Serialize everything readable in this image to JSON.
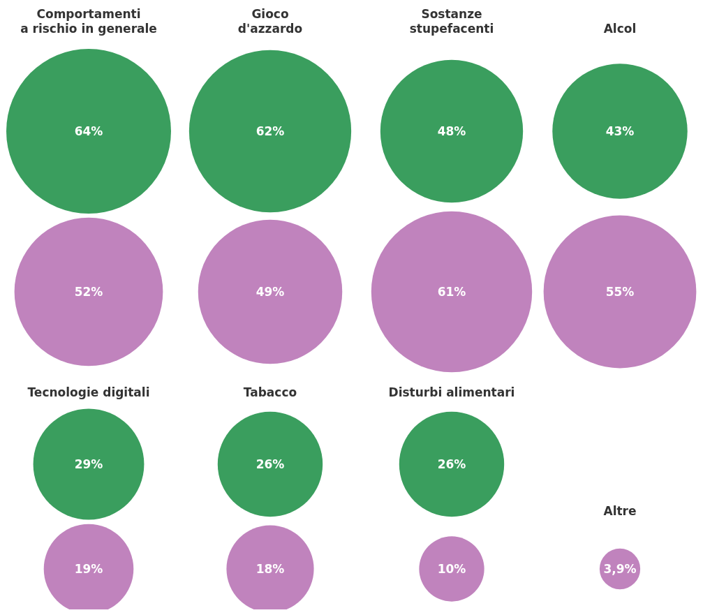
{
  "chart_data": [
    {
      "type": "other",
      "categories": [
        "Comportamenti\na rischio in generale",
        "Gioco\nd'azzardo",
        "Sostanze\nstupefacenti",
        "Alcol"
      ],
      "series": [
        {
          "color": "#3a9e5e",
          "values": [
            64,
            62,
            48,
            43
          ],
          "value_labels": [
            "64%",
            "62%",
            "48%",
            "43%"
          ]
        },
        {
          "color": "#c083bd",
          "values": [
            52,
            49,
            61,
            55
          ],
          "value_labels": [
            "52%",
            "49%",
            "61%",
            "55%"
          ]
        }
      ]
    },
    {
      "type": "other",
      "categories": [
        "Tecnologie digitali",
        "Tabacco",
        "Disturbi alimentari",
        "Altre"
      ],
      "series": [
        {
          "color": "#3a9e5e",
          "values": [
            29,
            26,
            26,
            null
          ],
          "value_labels": [
            "29%",
            "26%",
            "26%",
            null
          ]
        },
        {
          "color": "#c083bd",
          "values": [
            19,
            18,
            10,
            3.9
          ],
          "value_labels": [
            "19%",
            "18%",
            "10%",
            "3,9%"
          ]
        }
      ]
    }
  ]
}
